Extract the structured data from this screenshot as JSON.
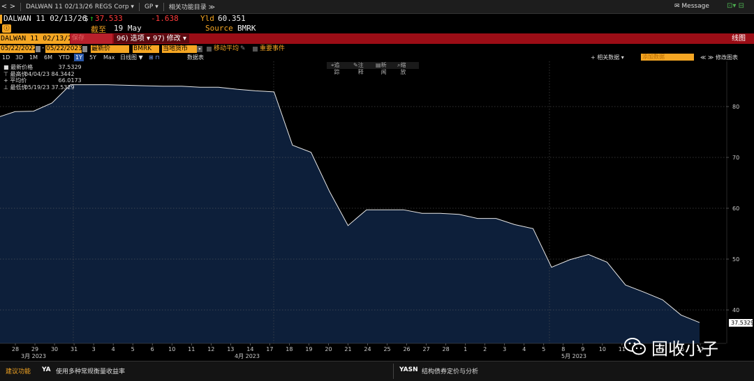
{
  "toolbar": {
    "back": "<",
    "forward": ">",
    "security": "DALWAN 11 02/13/26 REGS Corp ▾",
    "gp": "GP ▾",
    "related": "相关功能目录 ≫",
    "message": "Message",
    "right_icons": "⊡▾ ⊟"
  },
  "header": {
    "ticker": "DALWAN 11 02/13/26",
    "dollar": "$",
    "arrow": "↑",
    "price": "37.533",
    "change": "-1.638",
    "yld_label": "Yld",
    "yld_value": "60.351",
    "asof_label": "截至",
    "asof_date": "19 May",
    "source_label": "Source",
    "source_value": "BMRK",
    "badge": "ⓘ"
  },
  "redbar": {
    "security_field": "DALWAN 11 02/13/2",
    "desc": "保存",
    "btn1": "96) 选项 ▾",
    "btn2": "97) 修改 ▾",
    "right": "线图"
  },
  "controls": {
    "start_date": "05/22/2022",
    "dash": "-",
    "end_date": "05/22/2023",
    "field": "最新价",
    "source": "BMRK",
    "currency": "当地货币",
    "moving_avg": "移动平均",
    "events": "重要事件"
  },
  "periods": {
    "items": [
      "1D",
      "3D",
      "1M",
      "6M",
      "YTD",
      "1Y",
      "5Y",
      "Max"
    ],
    "selected": "1Y",
    "freq": "日线图 ▼",
    "table": "数据表",
    "related_data": "+ 相关数据 ▾",
    "add_data": "添加数据",
    "edit_chart": "修改图表",
    "tool_icons": "⊞ ⊓",
    "nav_icons": "≪ ≫"
  },
  "chart_tools": {
    "track": "追踪",
    "annotate": "注释",
    "news": "新闻",
    "zoom": "缩放"
  },
  "legend": {
    "last": {
      "label": "最新价格",
      "date": "",
      "value": "37.5329"
    },
    "high": {
      "label": "最高价",
      "date": "04/04/23",
      "value": "84.3442"
    },
    "avg": {
      "label": "平均价",
      "date": "",
      "value": "66.0173"
    },
    "low": {
      "label": "最低价",
      "date": "05/19/23",
      "value": "37.5329"
    }
  },
  "chart_data": {
    "type": "area",
    "y_ticks": [
      40,
      50,
      60,
      70,
      80
    ],
    "ylim": [
      33,
      90
    ],
    "last_value_label": "37.5329",
    "x_tick_labels": [
      "28",
      "29",
      "30",
      "31",
      "3",
      "4",
      "5",
      "6",
      "10",
      "11",
      "12",
      "13",
      "14",
      "17",
      "18",
      "19",
      "20",
      "21",
      "24",
      "25",
      "26",
      "27",
      "28",
      "1",
      "2",
      "3",
      "4",
      "5",
      "8",
      "9",
      "10",
      "11",
      "12",
      "15",
      "16",
      "17"
    ],
    "month_labels": [
      {
        "text": "3月 2023",
        "at": "29"
      },
      {
        "text": "4月 2023",
        "at": "14"
      },
      {
        "text": "5月 2023",
        "at": "10"
      }
    ],
    "values": [
      77.8,
      79.0,
      79.1,
      80.7,
      84.3,
      84.3,
      84.3,
      84.2,
      84.1,
      84.0,
      84.0,
      83.8,
      83.8,
      83.4,
      83.1,
      82.9,
      72.4,
      71.0,
      63.3,
      56.6,
      59.7,
      59.7,
      59.7,
      59.0,
      59.0,
      58.8,
      58.0,
      58.0,
      56.8,
      56.0,
      48.4,
      49.9,
      50.9,
      49.4,
      44.9,
      43.5,
      42.0,
      39.0,
      37.53
    ],
    "grid": true,
    "fill_color": "#0d1f3a",
    "line_color": "#e8e8e8"
  },
  "bottom": {
    "suggest": "建议功能",
    "ya": "YA",
    "ya_desc": "使用多种常规衡量收益率",
    "yasn": "YASN",
    "yasn_desc": "结构债券定价与分析"
  },
  "watermark": {
    "text": "固收小子"
  }
}
